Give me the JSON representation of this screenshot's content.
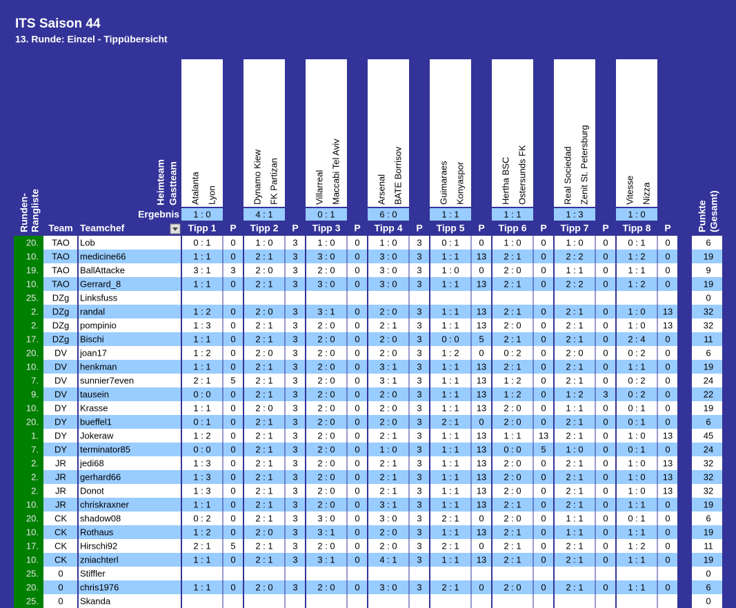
{
  "header": {
    "title": "ITS Saison 44",
    "subtitle": "13. Runde: Einzel - Tippübersicht"
  },
  "labels": {
    "home": "Heimteam",
    "away": "Gastteam",
    "result": "Ergebnis",
    "rank1": "Runden-",
    "rank2": "Rangliste",
    "team": "Team",
    "chef": "Teamchef",
    "points1": "Punkte",
    "points2": "(Gesamt)"
  },
  "matches": [
    {
      "home": "Atalanta",
      "away": "Lyon",
      "result": "1 : 0",
      "tipp": "Tipp 1",
      "p": "P"
    },
    {
      "home": "Dynamo Kiew",
      "away": "FK Partizan",
      "result": "4 : 1",
      "tipp": "Tipp 2",
      "p": "P"
    },
    {
      "home": "Villarreal",
      "away": "Maccabi Tel Aviv",
      "result": "0 : 1",
      "tipp": "Tipp 3",
      "p": "P"
    },
    {
      "home": "Arsenal",
      "away": "BATE Borrisov",
      "result": "6 : 0",
      "tipp": "Tipp 4",
      "p": "P"
    },
    {
      "home": "Guimaraes",
      "away": "Konyaspor",
      "result": "1 : 1",
      "tipp": "Tipp 5",
      "p": "P"
    },
    {
      "home": "Hertha BSC",
      "away": "Ostersunds FK",
      "result": "1 : 1",
      "tipp": "Tipp 6",
      "p": "P"
    },
    {
      "home": "Real Sociedad",
      "away": "Zenit St. Petersburg",
      "result": "1 : 3",
      "tipp": "Tipp 7",
      "p": "P"
    },
    {
      "home": "Vitesse",
      "away": "Nizza",
      "result": "1 : 0",
      "tipp": "Tipp 8",
      "p": "P"
    }
  ],
  "rows": [
    {
      "rank": "20.",
      "team": "TAO",
      "chef": "Lob",
      "tips": [
        [
          "0 : 1",
          0
        ],
        [
          "1 : 0",
          3
        ],
        [
          "1 : 0",
          0
        ],
        [
          "1 : 0",
          3
        ],
        [
          "0 : 1",
          0
        ],
        [
          "1 : 0",
          0
        ],
        [
          "1 : 0",
          0
        ],
        [
          "0 : 1",
          0
        ]
      ],
      "total": 6
    },
    {
      "rank": "10.",
      "team": "TAO",
      "chef": "medicine66",
      "tips": [
        [
          "1 : 1",
          0
        ],
        [
          "2 : 1",
          3
        ],
        [
          "3 : 0",
          0
        ],
        [
          "3 : 0",
          3
        ],
        [
          "1 : 1",
          13
        ],
        [
          "2 : 1",
          0
        ],
        [
          "2 : 2",
          0
        ],
        [
          "1 : 2",
          0
        ]
      ],
      "total": 19
    },
    {
      "rank": "19.",
      "team": "TAO",
      "chef": "BallAttacke",
      "tips": [
        [
          "3 : 1",
          3
        ],
        [
          "2 : 0",
          3
        ],
        [
          "2 : 0",
          0
        ],
        [
          "3 : 0",
          3
        ],
        [
          "1 : 0",
          0
        ],
        [
          "2 : 0",
          0
        ],
        [
          "1 : 1",
          0
        ],
        [
          "1 : 1",
          0
        ]
      ],
      "total": 9
    },
    {
      "rank": "10.",
      "team": "TAO",
      "chef": "Gerrard_8",
      "tips": [
        [
          "1 : 1",
          0
        ],
        [
          "2 : 1",
          3
        ],
        [
          "3 : 0",
          0
        ],
        [
          "3 : 0",
          3
        ],
        [
          "1 : 1",
          13
        ],
        [
          "2 : 1",
          0
        ],
        [
          "2 : 2",
          0
        ],
        [
          "1 : 2",
          0
        ]
      ],
      "total": 19
    },
    {
      "rank": "25.",
      "team": "DZg",
      "chef": "Linksfuss",
      "tips": [],
      "total": 0
    },
    {
      "rank": "2.",
      "team": "DZg",
      "chef": "randal",
      "tips": [
        [
          "1 : 2",
          0
        ],
        [
          "2 : 0",
          3
        ],
        [
          "3 : 1",
          0
        ],
        [
          "2 : 0",
          3
        ],
        [
          "1 : 1",
          13
        ],
        [
          "2 : 1",
          0
        ],
        [
          "2 : 1",
          0
        ],
        [
          "1 : 0",
          13
        ]
      ],
      "total": 32
    },
    {
      "rank": "2.",
      "team": "DZg",
      "chef": "pompinio",
      "tips": [
        [
          "1 : 3",
          0
        ],
        [
          "2 : 1",
          3
        ],
        [
          "2 : 0",
          0
        ],
        [
          "2 : 1",
          3
        ],
        [
          "1 : 1",
          13
        ],
        [
          "2 : 0",
          0
        ],
        [
          "2 : 1",
          0
        ],
        [
          "1 : 0",
          13
        ]
      ],
      "total": 32
    },
    {
      "rank": "17.",
      "team": "DZg",
      "chef": "Bischi",
      "tips": [
        [
          "1 : 1",
          0
        ],
        [
          "2 : 1",
          3
        ],
        [
          "2 : 0",
          0
        ],
        [
          "2 : 0",
          3
        ],
        [
          "0 : 0",
          5
        ],
        [
          "2 : 1",
          0
        ],
        [
          "2 : 1",
          0
        ],
        [
          "2 : 4",
          0
        ]
      ],
      "total": 11
    },
    {
      "rank": "20.",
      "team": "DV",
      "chef": "joan17",
      "tips": [
        [
          "1 : 2",
          0
        ],
        [
          "2 : 0",
          3
        ],
        [
          "2 : 0",
          0
        ],
        [
          "2 : 0",
          3
        ],
        [
          "1 : 2",
          0
        ],
        [
          "0 : 2",
          0
        ],
        [
          "2 : 0",
          0
        ],
        [
          "0 : 2",
          0
        ]
      ],
      "total": 6
    },
    {
      "rank": "10.",
      "team": "DV",
      "chef": "henkman",
      "tips": [
        [
          "1 : 1",
          0
        ],
        [
          "2 : 1",
          3
        ],
        [
          "2 : 0",
          0
        ],
        [
          "3 : 1",
          3
        ],
        [
          "1 : 1",
          13
        ],
        [
          "2 : 1",
          0
        ],
        [
          "2 : 1",
          0
        ],
        [
          "1 : 1",
          0
        ]
      ],
      "total": 19
    },
    {
      "rank": "7.",
      "team": "DV",
      "chef": "sunnier7even",
      "tips": [
        [
          "2 : 1",
          5
        ],
        [
          "2 : 1",
          3
        ],
        [
          "2 : 0",
          0
        ],
        [
          "3 : 1",
          3
        ],
        [
          "1 : 1",
          13
        ],
        [
          "1 : 2",
          0
        ],
        [
          "2 : 1",
          0
        ],
        [
          "0 : 2",
          0
        ]
      ],
      "total": 24
    },
    {
      "rank": "9.",
      "team": "DV",
      "chef": "tausein",
      "tips": [
        [
          "0 : 0",
          0
        ],
        [
          "2 : 1",
          3
        ],
        [
          "2 : 0",
          0
        ],
        [
          "2 : 0",
          3
        ],
        [
          "1 : 1",
          13
        ],
        [
          "1 : 2",
          0
        ],
        [
          "1 : 2",
          3
        ],
        [
          "0 : 2",
          0
        ]
      ],
      "total": 22
    },
    {
      "rank": "10.",
      "team": "DY",
      "chef": "Krasse",
      "tips": [
        [
          "1 : 1",
          0
        ],
        [
          "2 : 0",
          3
        ],
        [
          "2 : 0",
          0
        ],
        [
          "2 : 0",
          3
        ],
        [
          "1 : 1",
          13
        ],
        [
          "2 : 0",
          0
        ],
        [
          "1 : 1",
          0
        ],
        [
          "0 : 1",
          0
        ]
      ],
      "total": 19
    },
    {
      "rank": "20.",
      "team": "DY",
      "chef": "bueffel1",
      "tips": [
        [
          "0 : 1",
          0
        ],
        [
          "2 : 1",
          3
        ],
        [
          "2 : 0",
          0
        ],
        [
          "2 : 0",
          3
        ],
        [
          "2 : 1",
          0
        ],
        [
          "2 : 0",
          0
        ],
        [
          "2 : 1",
          0
        ],
        [
          "0 : 1",
          0
        ]
      ],
      "total": 6
    },
    {
      "rank": "1.",
      "team": "DY",
      "chef": "Jokeraw",
      "tips": [
        [
          "1 : 2",
          0
        ],
        [
          "2 : 1",
          3
        ],
        [
          "2 : 0",
          0
        ],
        [
          "2 : 1",
          3
        ],
        [
          "1 : 1",
          13
        ],
        [
          "1 : 1",
          13
        ],
        [
          "2 : 1",
          0
        ],
        [
          "1 : 0",
          13
        ]
      ],
      "total": 45
    },
    {
      "rank": "7.",
      "team": "DY",
      "chef": "terminator85",
      "tips": [
        [
          "0 : 0",
          0
        ],
        [
          "2 : 1",
          3
        ],
        [
          "2 : 0",
          0
        ],
        [
          "1 : 0",
          3
        ],
        [
          "1 : 1",
          13
        ],
        [
          "0 : 0",
          5
        ],
        [
          "1 : 0",
          0
        ],
        [
          "0 : 1",
          0
        ]
      ],
      "total": 24
    },
    {
      "rank": "2.",
      "team": "JR",
      "chef": "jedi68",
      "tips": [
        [
          "1 : 3",
          0
        ],
        [
          "2 : 1",
          3
        ],
        [
          "2 : 0",
          0
        ],
        [
          "2 : 1",
          3
        ],
        [
          "1 : 1",
          13
        ],
        [
          "2 : 0",
          0
        ],
        [
          "2 : 1",
          0
        ],
        [
          "1 : 0",
          13
        ]
      ],
      "total": 32
    },
    {
      "rank": "2.",
      "team": "JR",
      "chef": "gerhard66",
      "tips": [
        [
          "1 : 3",
          0
        ],
        [
          "2 : 1",
          3
        ],
        [
          "2 : 0",
          0
        ],
        [
          "2 : 1",
          3
        ],
        [
          "1 : 1",
          13
        ],
        [
          "2 : 0",
          0
        ],
        [
          "2 : 1",
          0
        ],
        [
          "1 : 0",
          13
        ]
      ],
      "total": 32
    },
    {
      "rank": "2.",
      "team": "JR",
      "chef": "Donot",
      "tips": [
        [
          "1 : 3",
          0
        ],
        [
          "2 : 1",
          3
        ],
        [
          "2 : 0",
          0
        ],
        [
          "2 : 1",
          3
        ],
        [
          "1 : 1",
          13
        ],
        [
          "2 : 0",
          0
        ],
        [
          "2 : 1",
          0
        ],
        [
          "1 : 0",
          13
        ]
      ],
      "total": 32
    },
    {
      "rank": "10.",
      "team": "JR",
      "chef": "chriskraxner",
      "tips": [
        [
          "1 : 1",
          0
        ],
        [
          "2 : 1",
          3
        ],
        [
          "2 : 0",
          0
        ],
        [
          "3 : 1",
          3
        ],
        [
          "1 : 1",
          13
        ],
        [
          "2 : 1",
          0
        ],
        [
          "2 : 1",
          0
        ],
        [
          "1 : 1",
          0
        ]
      ],
      "total": 19
    },
    {
      "rank": "20.",
      "team": "CK",
      "chef": "shadow08",
      "tips": [
        [
          "0 : 2",
          0
        ],
        [
          "2 : 1",
          3
        ],
        [
          "3 : 0",
          0
        ],
        [
          "3 : 0",
          3
        ],
        [
          "2 : 1",
          0
        ],
        [
          "2 : 0",
          0
        ],
        [
          "1 : 1",
          0
        ],
        [
          "0 : 1",
          0
        ]
      ],
      "total": 6
    },
    {
      "rank": "10.",
      "team": "CK",
      "chef": "Rothaus",
      "tips": [
        [
          "1 : 2",
          0
        ],
        [
          "2 : 0",
          3
        ],
        [
          "3 : 1",
          0
        ],
        [
          "2 : 0",
          3
        ],
        [
          "1 : 1",
          13
        ],
        [
          "2 : 1",
          0
        ],
        [
          "1 : 1",
          0
        ],
        [
          "1 : 1",
          0
        ]
      ],
      "total": 19
    },
    {
      "rank": "17.",
      "team": "CK",
      "chef": "Hirschi92",
      "tips": [
        [
          "2 : 1",
          5
        ],
        [
          "2 : 1",
          3
        ],
        [
          "2 : 0",
          0
        ],
        [
          "2 : 0",
          3
        ],
        [
          "2 : 1",
          0
        ],
        [
          "2 : 1",
          0
        ],
        [
          "2 : 1",
          0
        ],
        [
          "1 : 2",
          0
        ]
      ],
      "total": 11
    },
    {
      "rank": "10.",
      "team": "CK",
      "chef": "zniachterl",
      "tips": [
        [
          "1 : 1",
          0
        ],
        [
          "2 : 1",
          3
        ],
        [
          "3 : 1",
          0
        ],
        [
          "4 : 1",
          3
        ],
        [
          "1 : 1",
          13
        ],
        [
          "2 : 1",
          0
        ],
        [
          "2 : 1",
          0
        ],
        [
          "1 : 1",
          0
        ]
      ],
      "total": 19
    },
    {
      "rank": "25.",
      "team": "0",
      "chef": "Stiffler",
      "tips": [],
      "total": 0
    },
    {
      "rank": "20.",
      "team": "0",
      "chef": "chris1976",
      "tips": [
        [
          "1 : 1",
          0
        ],
        [
          "2 : 0",
          3
        ],
        [
          "2 : 0",
          0
        ],
        [
          "3 : 0",
          3
        ],
        [
          "2 : 1",
          0
        ],
        [
          "2 : 0",
          0
        ],
        [
          "2 : 1",
          0
        ],
        [
          "1 : 1",
          0
        ]
      ],
      "total": 6
    },
    {
      "rank": "25.",
      "team": "0",
      "chef": "Skanda",
      "tips": [],
      "total": 0
    }
  ]
}
